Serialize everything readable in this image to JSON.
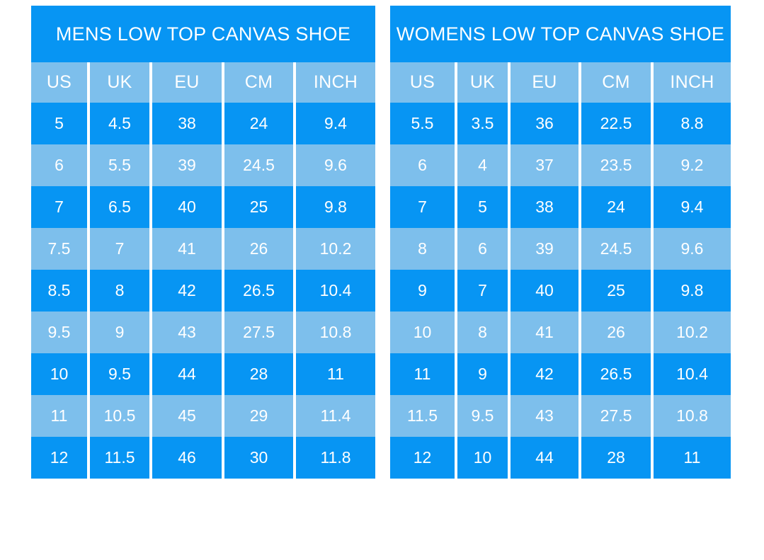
{
  "colors": {
    "primary_blue": "#0795F3",
    "light_blue": "#7DBFEC",
    "text_color": "#FFFFFF",
    "page_background": "#FFFFFF"
  },
  "chart_data": [
    {
      "type": "table",
      "title": "MENS LOW TOP CANVAS SHOE",
      "columns": [
        "US",
        "UK",
        "EU",
        "CM",
        "INCH"
      ],
      "rows": [
        [
          "5",
          "4.5",
          "38",
          "24",
          "9.4"
        ],
        [
          "6",
          "5.5",
          "39",
          "24.5",
          "9.6"
        ],
        [
          "7",
          "6.5",
          "40",
          "25",
          "9.8"
        ],
        [
          "7.5",
          "7",
          "41",
          "26",
          "10.2"
        ],
        [
          "8.5",
          "8",
          "42",
          "26.5",
          "10.4"
        ],
        [
          "9.5",
          "9",
          "43",
          "27.5",
          "10.8"
        ],
        [
          "10",
          "9.5",
          "44",
          "28",
          "11"
        ],
        [
          "11",
          "10.5",
          "45",
          "29",
          "11.4"
        ],
        [
          "12",
          "11.5",
          "46",
          "30",
          "11.8"
        ]
      ],
      "layout": {
        "header_background": "#0795F3",
        "column_header_background": "#7DBFEC",
        "row_stripe_order": [
          "dark",
          "light"
        ],
        "gridlines": "vertical-white-only"
      }
    },
    {
      "type": "table",
      "title": "WOMENS LOW TOP CANVAS SHOE",
      "columns": [
        "US",
        "UK",
        "EU",
        "CM",
        "INCH"
      ],
      "rows": [
        [
          "5.5",
          "3.5",
          "36",
          "22.5",
          "8.8"
        ],
        [
          "6",
          "4",
          "37",
          "23.5",
          "9.2"
        ],
        [
          "7",
          "5",
          "38",
          "24",
          "9.4"
        ],
        [
          "8",
          "6",
          "39",
          "24.5",
          "9.6"
        ],
        [
          "9",
          "7",
          "40",
          "25",
          "9.8"
        ],
        [
          "10",
          "8",
          "41",
          "26",
          "10.2"
        ],
        [
          "11",
          "9",
          "42",
          "26.5",
          "10.4"
        ],
        [
          "11.5",
          "9.5",
          "43",
          "27.5",
          "10.8"
        ],
        [
          "12",
          "10",
          "44",
          "28",
          "11"
        ]
      ],
      "layout": {
        "header_background": "#0795F3",
        "column_header_background": "#7DBFEC",
        "row_stripe_order": [
          "dark",
          "light"
        ],
        "gridlines": "vertical-white-only"
      }
    }
  ]
}
